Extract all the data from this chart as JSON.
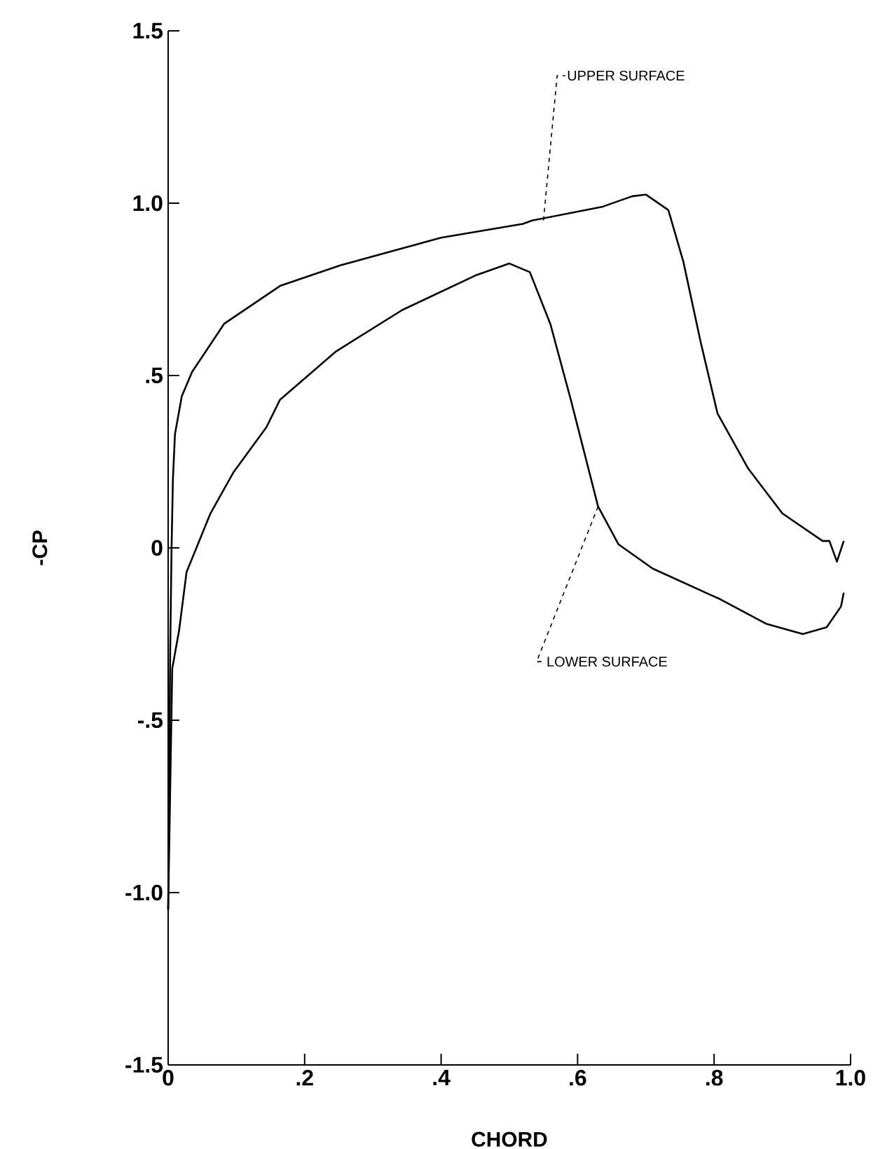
{
  "chart_data": {
    "type": "line",
    "xlabel": "CHORD",
    "ylabel": "-CP",
    "xlim": [
      0,
      1.0
    ],
    "ylim": [
      -1.5,
      1.5
    ],
    "xticks": [
      0,
      {
        "value": 0.2,
        "label": ".2"
      },
      {
        "value": 0.4,
        "label": ".4"
      },
      {
        "value": 0.6,
        "label": ".6"
      },
      {
        "value": 0.8,
        "label": ".8"
      },
      {
        "value": 1.0,
        "label": "1.0"
      }
    ],
    "yticks": [
      -1.5,
      {
        "value": -1.0,
        "label": "-1.0"
      },
      {
        "value": -0.5,
        "label": "-.5"
      },
      0,
      {
        "value": 0.5,
        "label": ".5"
      },
      {
        "value": 1.0,
        "label": "1.0"
      },
      1.5
    ],
    "grid": false,
    "marker": "none",
    "line_style": "solid",
    "series": [
      {
        "color": "#000000",
        "x": [
          0.0,
          0.003,
          0.005,
          0.007,
          0.01,
          0.02,
          0.035,
          0.082,
          0.164,
          0.253,
          0.4,
          0.52,
          0.534,
          0.637,
          0.68,
          0.7,
          0.733,
          0.755,
          0.78,
          0.805,
          0.85,
          0.9,
          0.959,
          0.969,
          0.98,
          0.99
        ],
        "values": [
          -1.05,
          -0.3,
          0.0,
          0.2,
          0.33,
          0.44,
          0.51,
          0.65,
          0.76,
          0.82,
          0.9,
          0.94,
          0.95,
          0.99,
          1.02,
          1.025,
          0.98,
          0.83,
          0.6,
          0.39,
          0.23,
          0.1,
          0.02,
          0.02,
          -0.04,
          0.02
        ]
      },
      {
        "color": "#000000",
        "x": [
          0.0,
          0.006,
          0.016,
          0.027,
          0.062,
          0.096,
          0.144,
          0.164,
          0.246,
          0.343,
          0.45,
          0.5,
          0.53,
          0.56,
          0.59,
          0.63,
          0.66,
          0.71,
          0.81,
          0.876,
          0.93,
          0.965,
          0.986,
          0.99
        ],
        "values": [
          -1.05,
          -0.35,
          -0.24,
          -0.07,
          0.1,
          0.22,
          0.35,
          0.43,
          0.57,
          0.69,
          0.79,
          0.825,
          0.8,
          0.65,
          0.43,
          0.12,
          0.01,
          -0.06,
          -0.15,
          -0.22,
          -0.25,
          -0.23,
          -0.17,
          -0.13
        ]
      }
    ],
    "annotations": [
      {
        "text": "UPPER SURFACE",
        "x": 0.55,
        "y": 0.95
      },
      {
        "text": "LOWER SURFACE",
        "x": 0.63,
        "y": 0.12
      }
    ]
  }
}
